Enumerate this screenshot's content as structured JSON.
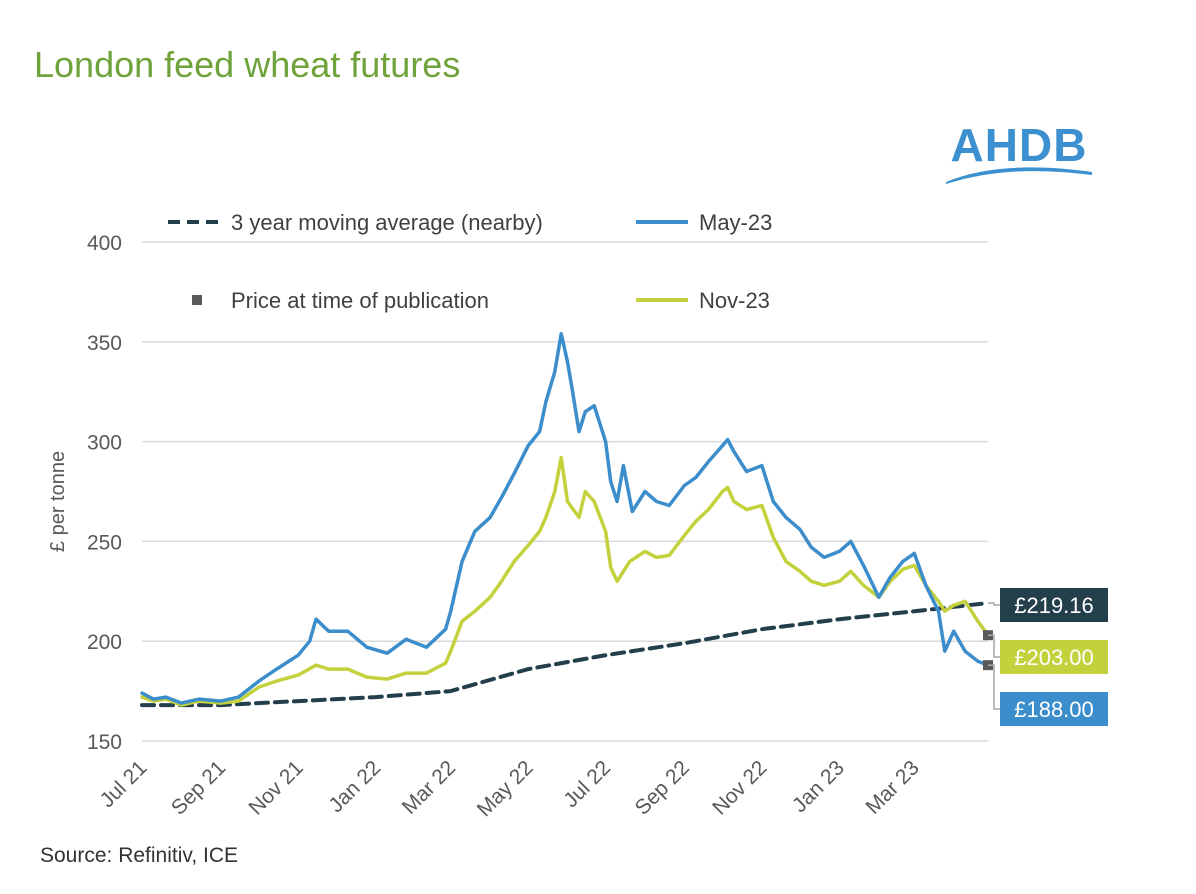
{
  "page": {
    "title": "London feed wheat futures",
    "source": "Source: Refinitiv, ICE"
  },
  "logo": {
    "text": "AHDB",
    "color": "#3c90d0"
  },
  "chart_data": {
    "type": "line",
    "title": "London feed wheat futures",
    "ylabel": "£ per tonne",
    "xlabel": "",
    "ylim": [
      150,
      400
    ],
    "yticks": [
      150,
      200,
      250,
      300,
      350,
      400
    ],
    "xticks": [
      "Jul 21",
      "Sep 21",
      "Nov 21",
      "Jan 22",
      "Mar 22",
      "May 22",
      "Jul 22",
      "Sep 22",
      "Nov 22",
      "Jan 23",
      "Mar 23"
    ],
    "x_range": [
      "2021-07-01",
      "2023-04-28"
    ],
    "grid": true,
    "legend_position": "top",
    "colors": {
      "avg": "#243f4c",
      "may23": "#3c8dcb",
      "nov23": "#c3d13c",
      "marker": "#595959",
      "grid": "#d9d9d9"
    },
    "series": [
      {
        "name": "3 year moving average (nearby)",
        "key": "avg",
        "style": "dashed",
        "points": [
          [
            "2021-07-01",
            168
          ],
          [
            "2021-09-01",
            168
          ],
          [
            "2021-11-01",
            170
          ],
          [
            "2022-01-01",
            172
          ],
          [
            "2022-03-01",
            175
          ],
          [
            "2022-05-01",
            186
          ],
          [
            "2022-07-01",
            193
          ],
          [
            "2022-09-01",
            199
          ],
          [
            "2022-11-01",
            206
          ],
          [
            "2023-01-01",
            211
          ],
          [
            "2023-03-01",
            215
          ],
          [
            "2023-04-28",
            219.16
          ]
        ]
      },
      {
        "name": "May-23",
        "key": "may23",
        "style": "solid",
        "points": [
          [
            "2021-07-01",
            174
          ],
          [
            "2021-07-10",
            171
          ],
          [
            "2021-07-20",
            172
          ],
          [
            "2021-08-01",
            169
          ],
          [
            "2021-08-15",
            171
          ],
          [
            "2021-09-01",
            170
          ],
          [
            "2021-09-15",
            172
          ],
          [
            "2021-10-01",
            180
          ],
          [
            "2021-10-15",
            186
          ],
          [
            "2021-11-01",
            193
          ],
          [
            "2021-11-10",
            200
          ],
          [
            "2021-11-15",
            211
          ],
          [
            "2021-11-25",
            205
          ],
          [
            "2021-12-10",
            205
          ],
          [
            "2021-12-25",
            197
          ],
          [
            "2022-01-10",
            194
          ],
          [
            "2022-01-25",
            201
          ],
          [
            "2022-02-10",
            197
          ],
          [
            "2022-02-25",
            206
          ],
          [
            "2022-03-01",
            215
          ],
          [
            "2022-03-10",
            240
          ],
          [
            "2022-03-20",
            255
          ],
          [
            "2022-04-01",
            262
          ],
          [
            "2022-04-10",
            272
          ],
          [
            "2022-04-20",
            284
          ],
          [
            "2022-05-01",
            298
          ],
          [
            "2022-05-10",
            305
          ],
          [
            "2022-05-15",
            320
          ],
          [
            "2022-05-22",
            335
          ],
          [
            "2022-05-27",
            354
          ],
          [
            "2022-06-01",
            340
          ],
          [
            "2022-06-05",
            325
          ],
          [
            "2022-06-10",
            305
          ],
          [
            "2022-06-15",
            315
          ],
          [
            "2022-06-22",
            318
          ],
          [
            "2022-07-01",
            300
          ],
          [
            "2022-07-05",
            280
          ],
          [
            "2022-07-10",
            270
          ],
          [
            "2022-07-15",
            288
          ],
          [
            "2022-07-22",
            265
          ],
          [
            "2022-08-01",
            275
          ],
          [
            "2022-08-10",
            270
          ],
          [
            "2022-08-20",
            268
          ],
          [
            "2022-09-01",
            278
          ],
          [
            "2022-09-10",
            282
          ],
          [
            "2022-09-20",
            290
          ],
          [
            "2022-10-01",
            298
          ],
          [
            "2022-10-05",
            301
          ],
          [
            "2022-10-10",
            295
          ],
          [
            "2022-10-20",
            285
          ],
          [
            "2022-11-01",
            288
          ],
          [
            "2022-11-10",
            270
          ],
          [
            "2022-11-20",
            262
          ],
          [
            "2022-12-01",
            256
          ],
          [
            "2022-12-10",
            247
          ],
          [
            "2022-12-20",
            242
          ],
          [
            "2023-01-01",
            245
          ],
          [
            "2023-01-10",
            250
          ],
          [
            "2023-01-20",
            238
          ],
          [
            "2023-02-01",
            222
          ],
          [
            "2023-02-10",
            232
          ],
          [
            "2023-02-20",
            240
          ],
          [
            "2023-03-01",
            244
          ],
          [
            "2023-03-10",
            228
          ],
          [
            "2023-03-20",
            215
          ],
          [
            "2023-03-25",
            195
          ],
          [
            "2023-04-01",
            205
          ],
          [
            "2023-04-10",
            195
          ],
          [
            "2023-04-20",
            190
          ],
          [
            "2023-04-28",
            188
          ]
        ]
      },
      {
        "name": "Nov-23",
        "key": "nov23",
        "style": "solid",
        "points": [
          [
            "2021-07-01",
            172
          ],
          [
            "2021-07-10",
            170
          ],
          [
            "2021-07-20",
            171
          ],
          [
            "2021-08-01",
            168
          ],
          [
            "2021-08-15",
            170
          ],
          [
            "2021-09-01",
            169
          ],
          [
            "2021-09-15",
            170
          ],
          [
            "2021-10-01",
            177
          ],
          [
            "2021-10-15",
            180
          ],
          [
            "2021-11-01",
            183
          ],
          [
            "2021-11-15",
            188
          ],
          [
            "2021-11-25",
            186
          ],
          [
            "2021-12-10",
            186
          ],
          [
            "2021-12-25",
            182
          ],
          [
            "2022-01-10",
            181
          ],
          [
            "2022-01-25",
            184
          ],
          [
            "2022-02-10",
            184
          ],
          [
            "2022-02-25",
            189
          ],
          [
            "2022-03-01",
            195
          ],
          [
            "2022-03-10",
            210
          ],
          [
            "2022-03-20",
            215
          ],
          [
            "2022-04-01",
            222
          ],
          [
            "2022-04-10",
            230
          ],
          [
            "2022-04-20",
            240
          ],
          [
            "2022-05-01",
            248
          ],
          [
            "2022-05-10",
            255
          ],
          [
            "2022-05-15",
            262
          ],
          [
            "2022-05-22",
            275
          ],
          [
            "2022-05-27",
            292
          ],
          [
            "2022-06-01",
            270
          ],
          [
            "2022-06-10",
            262
          ],
          [
            "2022-06-15",
            275
          ],
          [
            "2022-06-22",
            270
          ],
          [
            "2022-07-01",
            255
          ],
          [
            "2022-07-05",
            237
          ],
          [
            "2022-07-10",
            230
          ],
          [
            "2022-07-20",
            240
          ],
          [
            "2022-08-01",
            245
          ],
          [
            "2022-08-10",
            242
          ],
          [
            "2022-08-20",
            243
          ],
          [
            "2022-09-01",
            253
          ],
          [
            "2022-09-10",
            260
          ],
          [
            "2022-09-20",
            266
          ],
          [
            "2022-10-01",
            275
          ],
          [
            "2022-10-05",
            277
          ],
          [
            "2022-10-10",
            270
          ],
          [
            "2022-10-20",
            266
          ],
          [
            "2022-11-01",
            268
          ],
          [
            "2022-11-10",
            252
          ],
          [
            "2022-11-20",
            240
          ],
          [
            "2022-12-01",
            235
          ],
          [
            "2022-12-10",
            230
          ],
          [
            "2022-12-20",
            228
          ],
          [
            "2023-01-01",
            230
          ],
          [
            "2023-01-10",
            235
          ],
          [
            "2023-01-20",
            228
          ],
          [
            "2023-02-01",
            222
          ],
          [
            "2023-02-10",
            230
          ],
          [
            "2023-02-20",
            236
          ],
          [
            "2023-03-01",
            238
          ],
          [
            "2023-03-10",
            228
          ],
          [
            "2023-03-20",
            220
          ],
          [
            "2023-03-25",
            215
          ],
          [
            "2023-04-01",
            218
          ],
          [
            "2023-04-10",
            220
          ],
          [
            "2023-04-20",
            210
          ],
          [
            "2023-04-28",
            203
          ]
        ]
      }
    ],
    "price_markers": [
      {
        "series": "May-23",
        "date": "2023-04-28",
        "value": 188.0
      },
      {
        "series": "Nov-23",
        "date": "2023-04-28",
        "value": 203.0
      }
    ],
    "legend": [
      {
        "label": "3 year moving average (nearby)",
        "key": "avg",
        "style": "dashed"
      },
      {
        "label": "May-23",
        "key": "may23",
        "style": "solid"
      },
      {
        "label": "Price at time of publication",
        "key": "marker",
        "style": "square"
      },
      {
        "label": "Nov-23",
        "key": "nov23",
        "style": "solid"
      }
    ],
    "end_labels": [
      {
        "text": "£219.16",
        "key": "avg",
        "bg": "#243f4c",
        "fg": "#ffffff"
      },
      {
        "text": "£203.00",
        "key": "nov23",
        "bg": "#c3d13c",
        "fg": "#ffffff"
      },
      {
        "text": "£188.00",
        "key": "may23",
        "bg": "#3c8dcb",
        "fg": "#ffffff"
      }
    ]
  }
}
